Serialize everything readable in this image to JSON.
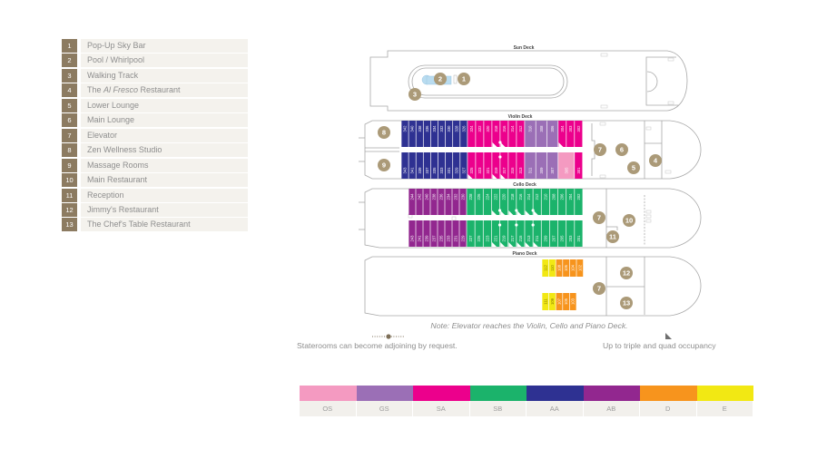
{
  "key": {
    "items": [
      {
        "num": "1",
        "label": "Pop-Up Sky Bar"
      },
      {
        "num": "2",
        "label": "Pool / Whirlpool"
      },
      {
        "num": "3",
        "label": "Walking Track"
      },
      {
        "num": "4",
        "pre": "The ",
        "em": "Al Fresco",
        "post": " Restaurant"
      },
      {
        "num": "5",
        "label": "Lower Lounge"
      },
      {
        "num": "6",
        "label": "Main Lounge"
      },
      {
        "num": "7",
        "label": "Elevator"
      },
      {
        "num": "8",
        "label": "Zen Wellness Studio"
      },
      {
        "num": "9",
        "label": "Massage Rooms"
      },
      {
        "num": "10",
        "label": "Main Restaurant"
      },
      {
        "num": "11",
        "label": "Reception"
      },
      {
        "num": "12",
        "label": "Jimmy's Restaurant"
      },
      {
        "num": "13",
        "label": "The Chef's Table Restaurant"
      }
    ]
  },
  "decks": {
    "sun": {
      "name": "Sun Deck",
      "markers": [
        "1",
        "2",
        "3"
      ]
    },
    "violin": {
      "name": "Violin Deck",
      "markers": [
        "8",
        "9",
        "7",
        "6",
        "5",
        "4"
      ],
      "rows": [
        [
          {
            "n": "342",
            "cat": "AA"
          },
          {
            "n": "340",
            "cat": "AA"
          },
          {
            "n": "338",
            "cat": "AA"
          },
          {
            "n": "336",
            "cat": "AA"
          },
          {
            "n": "334",
            "cat": "AA"
          },
          {
            "n": "332",
            "cat": "AA"
          },
          {
            "n": "330",
            "cat": "AA"
          },
          {
            "n": "328",
            "cat": "AA"
          },
          {
            "n": "326",
            "cat": "AA"
          },
          {
            "n": "324",
            "cat": "SA"
          },
          {
            "n": "322",
            "cat": "SA"
          },
          {
            "n": "320",
            "cat": "SA"
          },
          {
            "n": "318",
            "cat": "SA",
            "tri": true
          },
          {
            "n": "316",
            "cat": "SA",
            "tri": true
          },
          {
            "n": "314",
            "cat": "SA"
          },
          {
            "n": "312",
            "cat": "SA"
          },
          {
            "n": "310",
            "cat": "GS"
          },
          {
            "n": "308",
            "cat": "GS"
          },
          {
            "n": "306",
            "cat": "GS"
          },
          {
            "n": "304",
            "cat": "SA",
            "tri": true
          },
          {
            "n": "303",
            "cat": "SA"
          },
          {
            "n": "302",
            "cat": "SA"
          }
        ],
        [
          {
            "n": "343",
            "cat": "AA"
          },
          {
            "n": "341",
            "cat": "AA"
          },
          {
            "n": "339",
            "cat": "AA"
          },
          {
            "n": "337",
            "cat": "AA"
          },
          {
            "n": "335",
            "cat": "AA"
          },
          {
            "n": "333",
            "cat": "AA"
          },
          {
            "n": "331",
            "cat": "AA"
          },
          {
            "n": "329",
            "cat": "AA"
          },
          {
            "n": "327",
            "cat": "AA"
          },
          {
            "n": "325",
            "cat": "SA",
            "tri": true
          },
          {
            "n": "323",
            "cat": "SA"
          },
          {
            "n": "321",
            "cat": "SA"
          },
          {
            "n": "319",
            "cat": "SA",
            "tri": true
          },
          {
            "n": "317",
            "cat": "SA",
            "tri": true
          },
          {
            "n": "315",
            "cat": "SA"
          },
          {
            "n": "313",
            "cat": "SA"
          },
          {
            "n": "311",
            "cat": "GS"
          },
          {
            "n": "309",
            "cat": "GS"
          },
          {
            "n": "307",
            "cat": "GS"
          },
          {
            "n": "305",
            "cat": "OS"
          },
          {
            "n": "301",
            "cat": "SA"
          }
        ]
      ],
      "adjoining": [
        [
          "318",
          "316"
        ],
        [
          "319",
          "317"
        ]
      ]
    },
    "cello": {
      "name": "Cello Deck",
      "markers": [
        "7",
        "10",
        "11"
      ],
      "rows": [
        [
          {
            "n": "244",
            "cat": "AB"
          },
          {
            "n": "242",
            "cat": "AB"
          },
          {
            "n": "240",
            "cat": "AB"
          },
          {
            "n": "238",
            "cat": "AB"
          },
          {
            "n": "236",
            "cat": "AB"
          },
          {
            "n": "234",
            "cat": "AB"
          },
          {
            "n": "232",
            "cat": "AB"
          },
          {
            "n": "230",
            "cat": "AB"
          },
          {
            "n": "228",
            "cat": "SB"
          },
          {
            "n": "226",
            "cat": "SB"
          },
          {
            "n": "224",
            "cat": "SB"
          },
          {
            "n": "222",
            "cat": "SB",
            "tri": true
          },
          {
            "n": "220",
            "cat": "SB",
            "tri": true
          },
          {
            "n": "218",
            "cat": "SB",
            "tri": true
          },
          {
            "n": "216",
            "cat": "SB",
            "tri": true
          },
          {
            "n": "214",
            "cat": "SB",
            "tri": true
          },
          {
            "n": "212",
            "cat": "SB",
            "tri": true
          },
          {
            "n": "210",
            "cat": "SB"
          },
          {
            "n": "208",
            "cat": "SB"
          },
          {
            "n": "206",
            "cat": "SB"
          },
          {
            "n": "204",
            "cat": "SB"
          },
          {
            "n": "202",
            "cat": "SB"
          }
        ],
        [
          {
            "n": "243",
            "cat": "AB"
          },
          {
            "n": "241",
            "cat": "AB"
          },
          {
            "n": "239",
            "cat": "AB"
          },
          {
            "n": "237",
            "cat": "AB"
          },
          {
            "n": "235",
            "cat": "AB"
          },
          {
            "n": "233",
            "cat": "AB"
          },
          {
            "n": "231",
            "cat": "AB"
          },
          {
            "n": "229",
            "cat": "AB"
          },
          {
            "n": "227",
            "cat": "SB"
          },
          {
            "n": "225",
            "cat": "SB"
          },
          {
            "n": "223",
            "cat": "SB"
          },
          {
            "n": "221",
            "cat": "SB",
            "tri": true
          },
          {
            "n": "219",
            "cat": "SB",
            "tri": true
          },
          {
            "n": "217",
            "cat": "SB",
            "tri": true
          },
          {
            "n": "215",
            "cat": "SB",
            "tri": true
          },
          {
            "n": "213",
            "cat": "SB",
            "tri": true
          },
          {
            "n": "211",
            "cat": "SB",
            "tri": true
          },
          {
            "n": "209",
            "cat": "SB"
          },
          {
            "n": "207",
            "cat": "SB"
          },
          {
            "n": "205",
            "cat": "SB"
          },
          {
            "n": "203",
            "cat": "SB"
          },
          {
            "n": "201",
            "cat": "SB"
          }
        ]
      ],
      "adjoining": [
        [
          "222",
          "220"
        ],
        [
          "218",
          "216"
        ],
        [
          "214",
          "212"
        ],
        [
          "221",
          "219"
        ],
        [
          "217",
          "215"
        ],
        [
          "213",
          "211"
        ]
      ]
    },
    "piano": {
      "name": "Piano Deck",
      "markers": [
        "7",
        "12",
        "13"
      ],
      "rows": [
        [
          {
            "n": "112",
            "cat": "E"
          },
          {
            "n": "110",
            "cat": "E"
          },
          {
            "n": "108",
            "cat": "D"
          },
          {
            "n": "106",
            "cat": "D"
          },
          {
            "n": "104",
            "cat": "D"
          },
          {
            "n": "102",
            "cat": "D"
          }
        ],
        [
          {
            "n": "111",
            "cat": "E"
          },
          {
            "n": "109",
            "cat": "E"
          },
          {
            "n": "107",
            "cat": "D"
          },
          {
            "n": "105",
            "cat": "D"
          },
          {
            "n": "103",
            "cat": "D"
          }
        ]
      ],
      "adjoining": []
    }
  },
  "notes": {
    "elevator": "Note: Elevator reaches the Violin, Cello and Piano Deck.",
    "adjoining": "Staterooms can become adjoining by request.",
    "occupancy": "Up to triple and quad occupancy"
  },
  "categories": [
    {
      "code": "OS",
      "color": "#f49ac1"
    },
    {
      "code": "GS",
      "color": "#9b6fb6"
    },
    {
      "code": "SA",
      "color": "#ec008c"
    },
    {
      "code": "SB",
      "color": "#1bb36b"
    },
    {
      "code": "AA",
      "color": "#2e3192"
    },
    {
      "code": "AB",
      "color": "#92278f"
    },
    {
      "code": "D",
      "color": "#f7941d"
    },
    {
      "code": "E",
      "color": "#f2e813"
    }
  ],
  "colors": {
    "key_number_bg": "#8c7b61",
    "marker": "#ab9a78",
    "pool": "#b9dcf0"
  }
}
